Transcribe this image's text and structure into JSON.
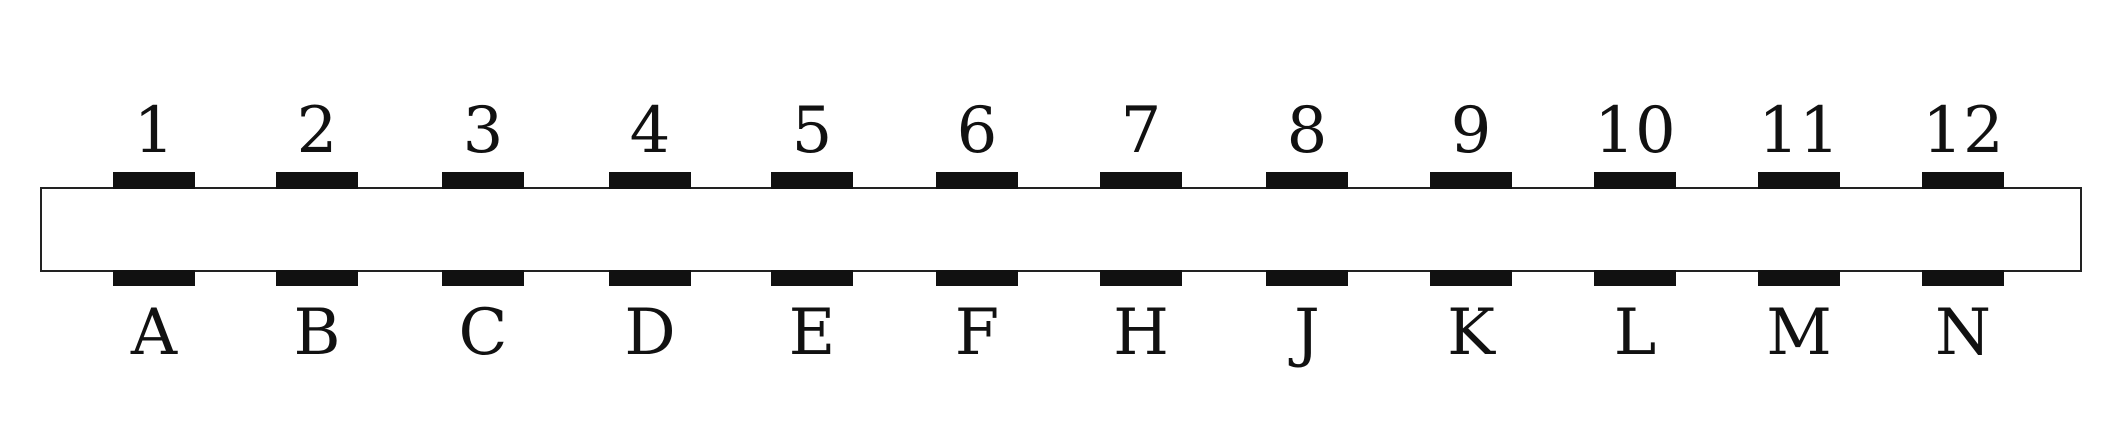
{
  "connector": {
    "top_pins": [
      "1",
      "2",
      "3",
      "4",
      "5",
      "6",
      "7",
      "8",
      "9",
      "10",
      "11",
      "12"
    ],
    "bottom_pins": [
      "A",
      "B",
      "C",
      "D",
      "E",
      "F",
      "H",
      "J",
      "K",
      "L",
      "M",
      "N"
    ],
    "colors": {
      "body_fill": "#ffffff",
      "body_stroke": "#222222",
      "contact": "#111111",
      "label": "#111111"
    }
  }
}
